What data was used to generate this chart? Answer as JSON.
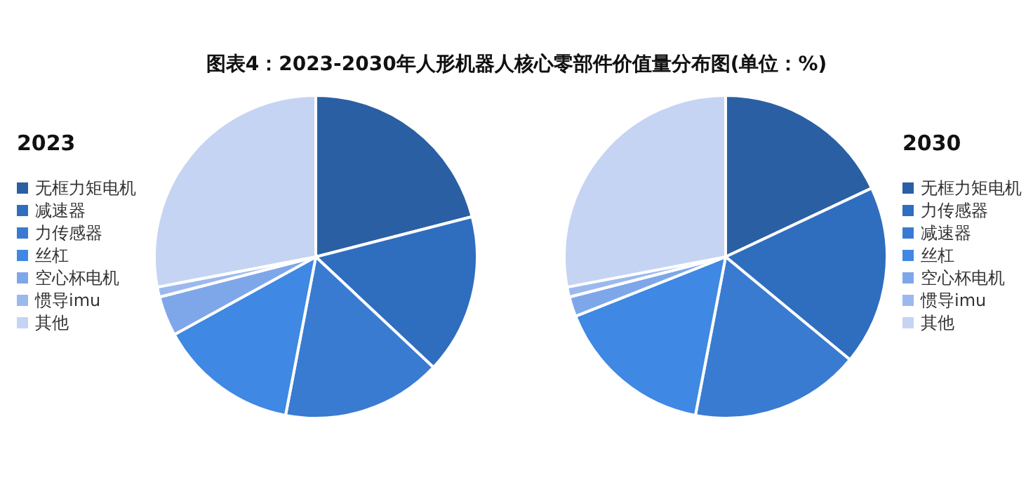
{
  "chart_data": [
    {
      "type": "pie",
      "title": "图表4：2023-2030年人形机器人核心零部件价值量分布图(单位：%)",
      "subtitle": "2023",
      "categories": [
        "无框力矩电机",
        "减速器",
        "力传感器",
        "丝杠",
        "空心杯电机",
        "惯导imu",
        "其他"
      ],
      "values": [
        21,
        16,
        16,
        14,
        4,
        1,
        28
      ],
      "colors": [
        "#2b5fa3",
        "#2f6dbf",
        "#3a7bd2",
        "#3f88e3",
        "#7ea7ea",
        "#9cb9ef",
        "#c5d4f2"
      ],
      "legend": "left"
    },
    {
      "type": "pie",
      "subtitle": "2030",
      "categories": [
        "无框力矩电机",
        "力传感器",
        "减速器",
        "丝杠",
        "空心杯电机",
        "惯导imu",
        "其他"
      ],
      "values": [
        18,
        18,
        17,
        16,
        2,
        1,
        28
      ],
      "colors": [
        "#2b5fa3",
        "#2f6dbf",
        "#3a7bd2",
        "#3f88e3",
        "#7ea7ea",
        "#9cb9ef",
        "#c5d4f2"
      ],
      "legend": "right"
    }
  ]
}
